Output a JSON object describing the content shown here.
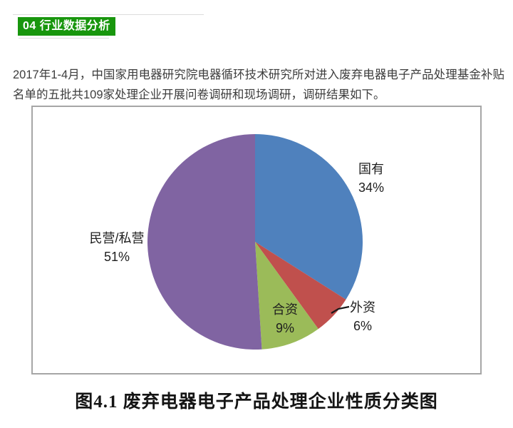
{
  "header": {
    "badge_label": "04 行业数据分析",
    "badge_color": "#18960D",
    "badge_text_color": "#ffffff"
  },
  "paragraph": {
    "text": "2017年1-4月，中国家用电器研究院电器循环技术研究所对进入废弃电器电子产品处理基金补贴名单的五批共109家处理企业开展问卷调研和现场调研，调研结果如下。"
  },
  "figure": {
    "caption": "图4.1 废弃电器电子产品处理企业性质分类图",
    "border_color": "#a6a6a6"
  },
  "chart_data": {
    "type": "pie",
    "title": "图4.1 废弃电器电子产品处理企业性质分类图",
    "start_angle_deg": 0,
    "direction": "clockwise",
    "legend_position": "none",
    "segments": [
      {
        "key": "state-owned",
        "label": "国有",
        "value": 34,
        "pct_label": "34%",
        "color": "#4F81BD"
      },
      {
        "key": "foreign-funded",
        "label": "外资",
        "value": 6,
        "pct_label": "6%",
        "color": "#C0504D"
      },
      {
        "key": "joint-venture",
        "label": "合资",
        "value": 9,
        "pct_label": "9%",
        "color": "#9BBB59"
      },
      {
        "key": "private",
        "label": "民营/私营",
        "value": 51,
        "pct_label": "51%",
        "color": "#8064A2"
      }
    ]
  }
}
